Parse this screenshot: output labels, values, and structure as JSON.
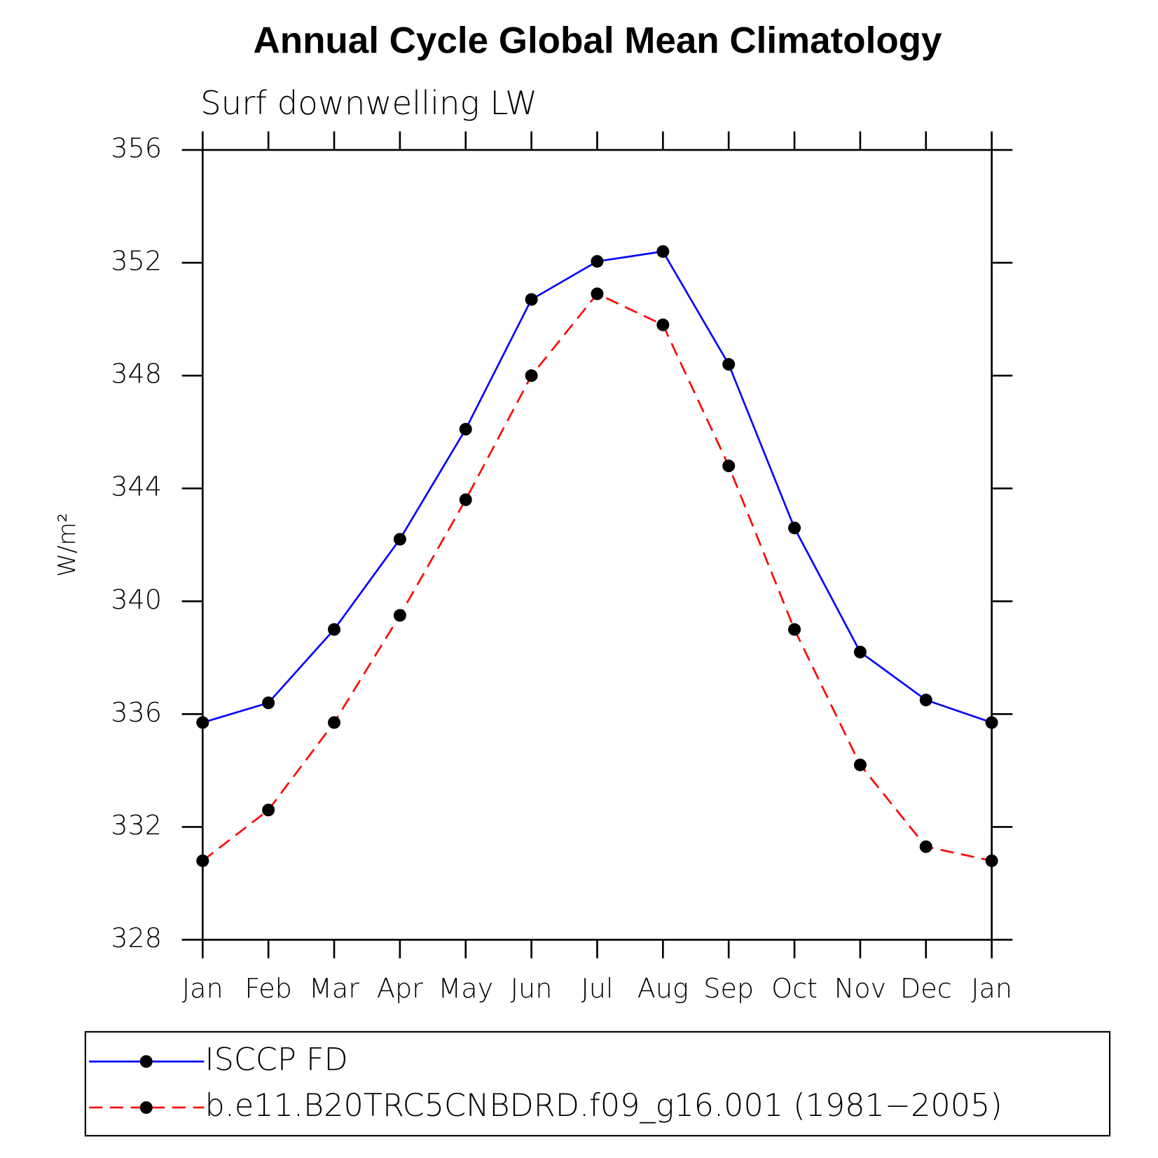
{
  "chart_data": {
    "type": "line",
    "title": "Annual Cycle Global Mean Climatology",
    "subtitle": "Surf downwelling LW",
    "ylabel": "W/m²",
    "categories": [
      "Jan",
      "Feb",
      "Mar",
      "Apr",
      "May",
      "Jun",
      "Jul",
      "Aug",
      "Sep",
      "Oct",
      "Nov",
      "Dec",
      "Jan"
    ],
    "series": [
      {
        "name": "ISCCP FD",
        "color": "#0000ff",
        "dash": "solid",
        "values": [
          335.7,
          336.4,
          339.0,
          342.2,
          346.1,
          350.7,
          352.05,
          352.4,
          348.4,
          342.6,
          338.2,
          336.5,
          335.7
        ]
      },
      {
        "name": "b.e11.B20TRC5CNBDRD.f09_g16.001 (1981−2005)",
        "color": "#ff0000",
        "dash": "dashed",
        "values": [
          330.8,
          332.6,
          335.7,
          339.5,
          343.6,
          348.0,
          350.9,
          349.8,
          344.8,
          339.0,
          334.2,
          331.3,
          330.8
        ]
      }
    ],
    "ylim": [
      328,
      356
    ],
    "yticks": [
      328,
      332,
      336,
      340,
      344,
      348,
      352,
      356
    ]
  }
}
